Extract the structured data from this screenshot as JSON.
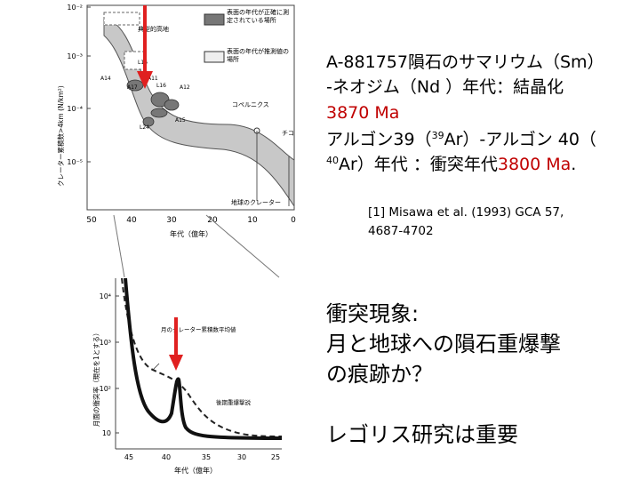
{
  "figure_top": {
    "y_axis_label": "クレーター累積数>4km (N/km²)",
    "y_ticks": [
      "10⁻²",
      "10⁻³",
      "10⁻⁴",
      "10⁻⁵"
    ],
    "x_axis_label": "年代（億年）",
    "x_ticks": [
      "50",
      "40",
      "30",
      "20",
      "10",
      "0"
    ],
    "region_labels": {
      "highland": "典型的高地",
      "copernicus": "コペルニクス",
      "tycho": "チコ",
      "earth": "地球のクレーター"
    },
    "samples": [
      "L16",
      "A11",
      "A14",
      "A17",
      "L16",
      "A12",
      "A15",
      "L24"
    ],
    "legend": {
      "measured": "表面の年代が正確に測定されている場所",
      "inferred": "表面の年代が推測値の場所"
    }
  },
  "figure_bottom": {
    "y_axis_label": "月面の衝突率（現在を1とする）",
    "y_ticks": [
      "10⁴",
      "10³",
      "10²",
      "10"
    ],
    "x_axis_label": "年代（億年）",
    "x_ticks": [
      "45",
      "40",
      "35",
      "30",
      "25"
    ],
    "curve_labels": {
      "average": "月のクレーター累積数平均値",
      "late_bombardment": "後期重爆撃説"
    }
  },
  "text": {
    "line1": "A-881757隕石のサマリウム（Sm）",
    "line2": "-ネオジム（Nd ）年代：結晶化",
    "line3": "3870 Ma",
    "line4a": "アルゴン39（",
    "line4sup": "39",
    "line4b": "Ar）-アルゴン 40（",
    "line5sup": "40",
    "line5a": "Ar）年代 ：衝突年代",
    "line5b": "3800 Ma",
    "line5c": ".",
    "ref1": "[1] Misawa et al. (1993) GCA 57,",
    "ref2": "4687-4702",
    "impact1": "衝突現象:",
    "impact2": "月と地球への隕石重爆撃",
    "impact3": "の痕跡か？",
    "regolith": "レゴリス研究は重要"
  },
  "colors": {
    "arrow": "#e02020",
    "band": "#c8c8c8",
    "red_text": "#c00000"
  }
}
